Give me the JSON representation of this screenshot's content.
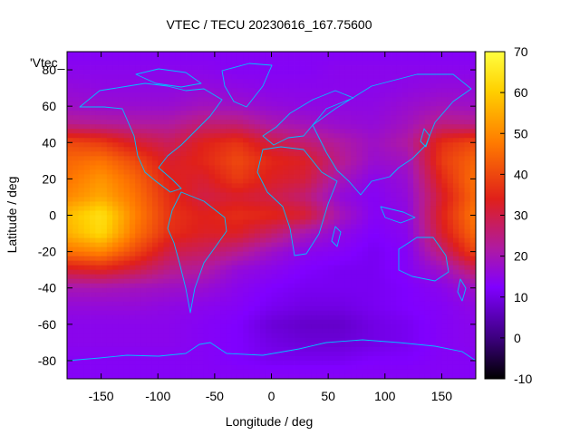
{
  "chart_data": {
    "type": "heatmap",
    "title": "VTEC / TECU 20230616_167.75600",
    "xlabel": "Longitude / deg",
    "ylabel": "Latitude / deg",
    "key_label": "'Vtec_",
    "xlim": [
      -180,
      180
    ],
    "ylim": [
      -90,
      90
    ],
    "x_ticks": [
      -150,
      -100,
      -50,
      0,
      50,
      100,
      150
    ],
    "y_ticks": [
      -80,
      -60,
      -40,
      -20,
      0,
      20,
      40,
      60,
      80
    ],
    "x_tick_labels": [
      "-150",
      "-100",
      "-50",
      "0",
      "50",
      "100",
      "150"
    ],
    "y_tick_labels": [
      "-80",
      "-60",
      "-40",
      "-20",
      "0",
      "20",
      "40",
      "60",
      "80"
    ],
    "colorbar": {
      "range": [
        -10,
        70
      ],
      "ticks": [
        -10,
        0,
        10,
        20,
        30,
        40,
        50,
        60,
        70
      ],
      "tick_labels": [
        "-10",
        "0",
        "10",
        "20",
        "30",
        "40",
        "50",
        "60",
        "70"
      ],
      "palette": [
        "#000000",
        "#3a007a",
        "#8000ff",
        "#b01aa0",
        "#e0201a",
        "#ff7a00",
        "#ffd000",
        "#ffff40"
      ]
    },
    "overlay": "coastlines",
    "overlay_color": "#00c0ff",
    "grid": false,
    "legend": "top-left",
    "lat_bands": [
      87.5,
      80,
      70,
      60,
      50,
      40,
      30,
      20,
      10,
      0,
      -10,
      -20,
      -30,
      -40,
      -50,
      -60,
      -70,
      -80,
      -87.5
    ],
    "lon_nodes": [
      -180,
      -150,
      -120,
      -90,
      -60,
      -30,
      0,
      30,
      60,
      90,
      120,
      150,
      180
    ],
    "vtec_grid": [
      [
        11,
        11,
        11,
        11,
        11,
        11,
        11,
        11,
        11,
        11,
        11,
        11,
        11
      ],
      [
        12,
        12,
        12,
        12,
        12,
        11,
        11,
        11,
        12,
        12,
        12,
        12,
        12
      ],
      [
        14,
        13,
        13,
        13,
        14,
        13,
        12,
        12,
        12,
        12,
        13,
        14,
        14
      ],
      [
        16,
        15,
        15,
        15,
        17,
        16,
        14,
        13,
        13,
        13,
        15,
        17,
        16
      ],
      [
        22,
        21,
        20,
        20,
        24,
        24,
        19,
        17,
        15,
        14,
        17,
        23,
        22
      ],
      [
        38,
        36,
        30,
        26,
        32,
        35,
        28,
        24,
        20,
        16,
        20,
        34,
        38
      ],
      [
        42,
        44,
        38,
        30,
        33,
        38,
        33,
        31,
        22,
        15,
        17,
        36,
        42
      ],
      [
        44,
        49,
        42,
        32,
        30,
        36,
        31,
        29,
        18,
        12,
        15,
        33,
        44
      ],
      [
        47,
        52,
        44,
        34,
        28,
        30,
        28,
        24,
        14,
        11,
        14,
        30,
        43
      ],
      [
        55,
        62,
        46,
        35,
        32,
        34,
        33,
        30,
        18,
        11,
        13,
        32,
        45
      ],
      [
        53,
        60,
        44,
        34,
        31,
        31,
        25,
        18,
        13,
        10,
        12,
        30,
        43
      ],
      [
        44,
        47,
        38,
        28,
        26,
        22,
        16,
        12,
        11,
        9,
        11,
        24,
        38
      ],
      [
        30,
        32,
        28,
        22,
        20,
        14,
        12,
        10,
        9,
        9,
        11,
        16,
        26
      ],
      [
        18,
        18,
        17,
        16,
        15,
        12,
        10,
        9,
        9,
        9,
        10,
        12,
        16
      ],
      [
        14,
        14,
        14,
        13,
        12,
        11,
        9,
        8,
        8,
        9,
        10,
        11,
        13
      ],
      [
        12,
        12,
        12,
        12,
        11,
        10,
        7,
        6,
        6,
        8,
        9,
        11,
        12
      ],
      [
        12,
        12,
        12,
        12,
        11,
        10,
        8,
        7,
        7,
        8,
        9,
        11,
        12
      ],
      [
        11,
        11,
        11,
        11,
        11,
        10,
        9,
        9,
        9,
        10,
        10,
        11,
        11
      ],
      [
        11,
        11,
        11,
        11,
        11,
        11,
        11,
        11,
        11,
        11,
        11,
        11,
        11
      ]
    ]
  }
}
